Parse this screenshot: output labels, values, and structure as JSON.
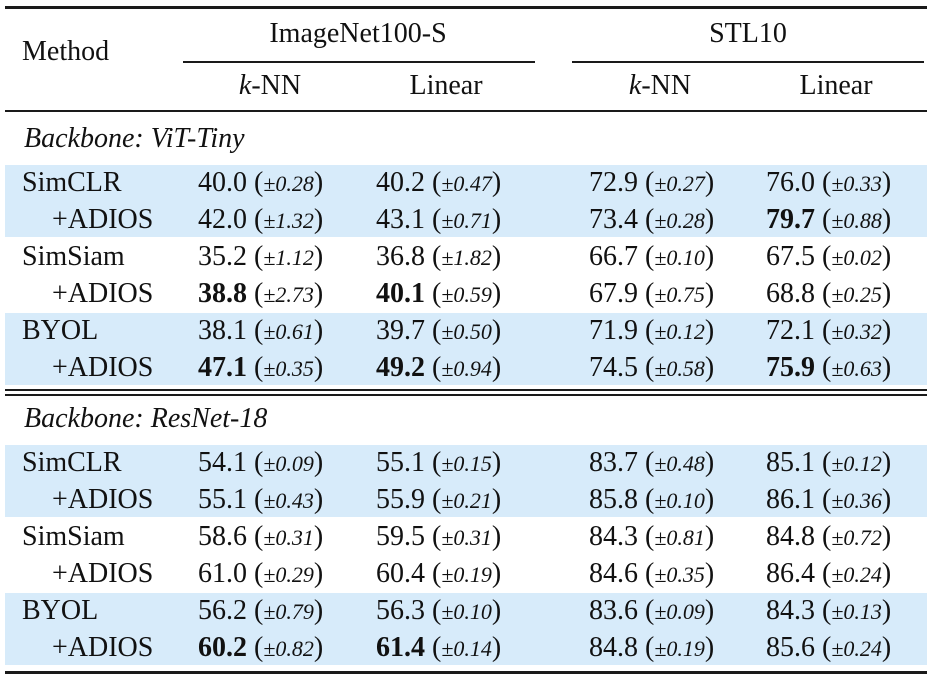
{
  "header": {
    "method": "Method",
    "groups": [
      "ImageNet100-S",
      "STL10"
    ],
    "sub_k": "k",
    "sub_nn": "-NN",
    "sub_linear": "Linear"
  },
  "sections": [
    {
      "title": "Backbone: ViT-Tiny",
      "rows": [
        {
          "method": "SimCLR",
          "cells": [
            {
              "v": "40.0",
              "s": "±0.28",
              "b": false
            },
            {
              "v": "40.2",
              "s": "±0.47",
              "b": false
            },
            {
              "v": "72.9",
              "s": "±0.27",
              "b": false
            },
            {
              "v": "76.0",
              "s": "±0.33",
              "b": false
            }
          ]
        },
        {
          "method": "+ADIOS",
          "cells": [
            {
              "v": "42.0",
              "s": "±1.32",
              "b": false
            },
            {
              "v": "43.1",
              "s": "±0.71",
              "b": false
            },
            {
              "v": "73.4",
              "s": "±0.28",
              "b": false
            },
            {
              "v": "79.7",
              "s": "±0.88",
              "b": true
            }
          ]
        },
        {
          "method": "SimSiam",
          "cells": [
            {
              "v": "35.2",
              "s": "±1.12",
              "b": false
            },
            {
              "v": "36.8",
              "s": "±1.82",
              "b": false
            },
            {
              "v": "66.7",
              "s": "±0.10",
              "b": false
            },
            {
              "v": "67.5",
              "s": "±0.02",
              "b": false
            }
          ]
        },
        {
          "method": "+ADIOS",
          "cells": [
            {
              "v": "38.8",
              "s": "±2.73",
              "b": true
            },
            {
              "v": "40.1",
              "s": "±0.59",
              "b": true
            },
            {
              "v": "67.9",
              "s": "±0.75",
              "b": false
            },
            {
              "v": "68.8",
              "s": "±0.25",
              "b": false
            }
          ]
        },
        {
          "method": "BYOL",
          "cells": [
            {
              "v": "38.1",
              "s": "±0.61",
              "b": false
            },
            {
              "v": "39.7",
              "s": "±0.50",
              "b": false
            },
            {
              "v": "71.9",
              "s": "±0.12",
              "b": false
            },
            {
              "v": "72.1",
              "s": "±0.32",
              "b": false
            }
          ]
        },
        {
          "method": "+ADIOS",
          "cells": [
            {
              "v": "47.1",
              "s": "±0.35",
              "b": true
            },
            {
              "v": "49.2",
              "s": "±0.94",
              "b": true
            },
            {
              "v": "74.5",
              "s": "±0.58",
              "b": false
            },
            {
              "v": "75.9",
              "s": "±0.63",
              "b": true
            }
          ]
        }
      ]
    },
    {
      "title": "Backbone: ResNet-18",
      "rows": [
        {
          "method": "SimCLR",
          "cells": [
            {
              "v": "54.1",
              "s": "±0.09",
              "b": false
            },
            {
              "v": "55.1",
              "s": "±0.15",
              "b": false
            },
            {
              "v": "83.7",
              "s": "±0.48",
              "b": false
            },
            {
              "v": "85.1",
              "s": "±0.12",
              "b": false
            }
          ]
        },
        {
          "method": "+ADIOS",
          "cells": [
            {
              "v": "55.1",
              "s": "±0.43",
              "b": false
            },
            {
              "v": "55.9",
              "s": "±0.21",
              "b": false
            },
            {
              "v": "85.8",
              "s": "±0.10",
              "b": false
            },
            {
              "v": "86.1",
              "s": "±0.36",
              "b": false
            }
          ]
        },
        {
          "method": "SimSiam",
          "cells": [
            {
              "v": "58.6",
              "s": "±0.31",
              "b": false
            },
            {
              "v": "59.5",
              "s": "±0.31",
              "b": false
            },
            {
              "v": "84.3",
              "s": "±0.81",
              "b": false
            },
            {
              "v": "84.8",
              "s": "±0.72",
              "b": false
            }
          ]
        },
        {
          "method": "+ADIOS",
          "cells": [
            {
              "v": "61.0",
              "s": "±0.29",
              "b": false
            },
            {
              "v": "60.4",
              "s": "±0.19",
              "b": false
            },
            {
              "v": "84.6",
              "s": "±0.35",
              "b": false
            },
            {
              "v": "86.4",
              "s": "±0.24",
              "b": false
            }
          ]
        },
        {
          "method": "BYOL",
          "cells": [
            {
              "v": "56.2",
              "s": "±0.79",
              "b": false
            },
            {
              "v": "56.3",
              "s": "±0.10",
              "b": false
            },
            {
              "v": "83.6",
              "s": "±0.09",
              "b": false
            },
            {
              "v": "84.3",
              "s": "±0.13",
              "b": false
            }
          ]
        },
        {
          "method": "+ADIOS",
          "cells": [
            {
              "v": "60.2",
              "s": "±0.82",
              "b": true
            },
            {
              "v": "61.4",
              "s": "±0.14",
              "b": true
            },
            {
              "v": "84.8",
              "s": "±0.19",
              "b": false
            },
            {
              "v": "85.6",
              "s": "±0.24",
              "b": false
            }
          ]
        }
      ]
    }
  ]
}
